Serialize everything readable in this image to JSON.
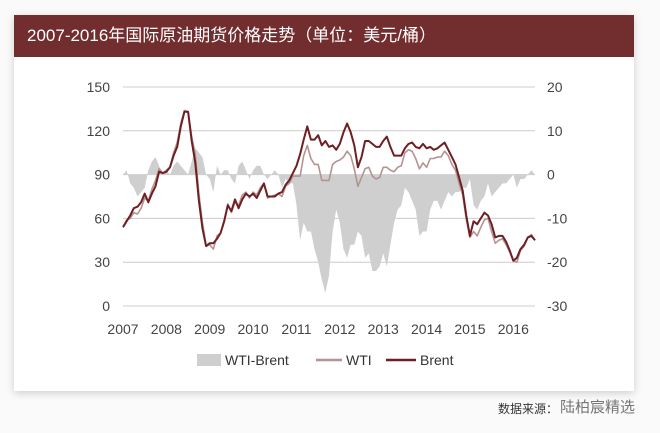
{
  "header": {
    "title": "2007-2016年国际原油期货价格走势（单位：美元/桶）"
  },
  "footer": {
    "source": "数据来源：",
    "watermark": "陆柏宸精选"
  },
  "colors": {
    "header": "#722d2f",
    "brent": "#6e1f24",
    "wti": "#b49492",
    "spread": "#cfcfcf",
    "grid": "#cccccc"
  },
  "chart_data": {
    "type": "line+area",
    "title": "2007-2016年国际原油期货价格走势（单位：美元/桶）",
    "x_ticks": [
      "2007",
      "2008",
      "2009",
      "2010",
      "2011",
      "2012",
      "2013",
      "2014",
      "2015",
      "2016"
    ],
    "left_axis": {
      "ticks": [
        "0",
        "30",
        "60",
        "90",
        "120",
        "150"
      ],
      "ylim": [
        0,
        150
      ]
    },
    "right_axis": {
      "ticks": [
        "-30",
        "-20",
        "-10",
        "0",
        "10",
        "20"
      ],
      "ylim": [
        -30,
        20
      ]
    },
    "grid": true,
    "legend": {
      "position": "bottom",
      "items": [
        "WTI-Brent",
        "WTI",
        "Brent"
      ]
    },
    "x": [
      "2007-01",
      "2007-02",
      "2007-03",
      "2007-04",
      "2007-05",
      "2007-06",
      "2007-07",
      "2007-08",
      "2007-09",
      "2007-10",
      "2007-11",
      "2007-12",
      "2008-01",
      "2008-02",
      "2008-03",
      "2008-04",
      "2008-05",
      "2008-06",
      "2008-07",
      "2008-08",
      "2008-09",
      "2008-10",
      "2008-11",
      "2008-12",
      "2009-01",
      "2009-02",
      "2009-03",
      "2009-04",
      "2009-05",
      "2009-06",
      "2009-07",
      "2009-08",
      "2009-09",
      "2009-10",
      "2009-11",
      "2009-12",
      "2010-01",
      "2010-02",
      "2010-03",
      "2010-04",
      "2010-05",
      "2010-06",
      "2010-07",
      "2010-08",
      "2010-09",
      "2010-10",
      "2010-11",
      "2010-12",
      "2011-01",
      "2011-02",
      "2011-03",
      "2011-04",
      "2011-05",
      "2011-06",
      "2011-07",
      "2011-08",
      "2011-09",
      "2011-10",
      "2011-11",
      "2011-12",
      "2012-01",
      "2012-02",
      "2012-03",
      "2012-04",
      "2012-05",
      "2012-06",
      "2012-07",
      "2012-08",
      "2012-09",
      "2012-10",
      "2012-11",
      "2012-12",
      "2013-01",
      "2013-02",
      "2013-03",
      "2013-04",
      "2013-05",
      "2013-06",
      "2013-07",
      "2013-08",
      "2013-09",
      "2013-10",
      "2013-11",
      "2013-12",
      "2014-01",
      "2014-02",
      "2014-03",
      "2014-04",
      "2014-05",
      "2014-06",
      "2014-07",
      "2014-08",
      "2014-09",
      "2014-10",
      "2014-11",
      "2014-12",
      "2015-01",
      "2015-02",
      "2015-03",
      "2015-04",
      "2015-05",
      "2015-06",
      "2015-07",
      "2015-08",
      "2015-09",
      "2015-10",
      "2015-11",
      "2015-12",
      "2016-01",
      "2016-02",
      "2016-03",
      "2016-04",
      "2016-05",
      "2016-06",
      "2016-07"
    ],
    "series": [
      {
        "name": "WTI-Brent",
        "axis": "right",
        "type": "area",
        "values": [
          0,
          1,
          -2,
          -3,
          -5,
          -4,
          -3,
          1,
          3,
          4,
          2,
          0,
          1,
          0,
          2,
          3,
          2,
          1,
          0,
          3,
          6,
          5,
          4,
          0,
          -1,
          -4,
          2,
          0,
          1,
          1,
          -1,
          -2,
          2,
          3,
          1,
          -1,
          1,
          2,
          2,
          0,
          -1,
          0,
          1,
          0,
          -3,
          -1,
          -2,
          -2,
          -7,
          -15,
          -11,
          -13,
          -13,
          -17,
          -20,
          -24,
          -27,
          -23,
          -13,
          -8,
          -11,
          -17,
          -19,
          -16,
          -16,
          -13,
          -14,
          -19,
          -18,
          -22,
          -22,
          -21,
          -18,
          -21,
          -16,
          -11,
          -8,
          -7,
          -3,
          -4,
          -6,
          -8,
          -14,
          -13,
          -13,
          -8,
          -6,
          -6,
          -8,
          -6,
          -4,
          -5,
          -4,
          -4,
          -3,
          -3,
          -1,
          -7,
          -8,
          -6,
          -5,
          -2,
          -5,
          -4,
          -3,
          -2,
          -2,
          -1,
          0,
          -3,
          -1,
          -1,
          0,
          1,
          0
        ]
      },
      {
        "name": "WTI",
        "axis": "left",
        "type": "line",
        "values": [
          54,
          59,
          60,
          64,
          63,
          67,
          74,
          72,
          80,
          86,
          94,
          91,
          93,
          95,
          105,
          112,
          125,
          134,
          133,
          116,
          104,
          77,
          57,
          41,
          42,
          39,
          48,
          50,
          59,
          70,
          64,
          71,
          69,
          76,
          78,
          74,
          78,
          76,
          81,
          84,
          74,
          75,
          76,
          77,
          75,
          82,
          84,
          89,
          89,
          89,
          103,
          110,
          101,
          97,
          97,
          86,
          86,
          86,
          97,
          99,
          100,
          102,
          106,
          103,
          94,
          82,
          88,
          94,
          95,
          89,
          87,
          88,
          95,
          95,
          93,
          92,
          95,
          96,
          105,
          107,
          106,
          101,
          94,
          98,
          95,
          101,
          101,
          102,
          102,
          106,
          103,
          97,
          93,
          84,
          76,
          59,
          47,
          51,
          48,
          54,
          59,
          60,
          51,
          43,
          45,
          46,
          42,
          37,
          31,
          30,
          38,
          41,
          47,
          49,
          45
        ]
      },
      {
        "name": "Brent",
        "axis": "left",
        "type": "line",
        "values": [
          54,
          58,
          62,
          67,
          68,
          71,
          77,
          71,
          77,
          82,
          92,
          91,
          92,
          95,
          103,
          109,
          123,
          133,
          133,
          113,
          98,
          72,
          53,
          41,
          43,
          43,
          46,
          50,
          58,
          69,
          65,
          73,
          67,
          73,
          77,
          75,
          77,
          74,
          79,
          84,
          75,
          75,
          75,
          77,
          78,
          83,
          86,
          91,
          96,
          104,
          114,
          123,
          114,
          114,
          117,
          110,
          113,
          109,
          110,
          107,
          111,
          119,
          125,
          119,
          110,
          95,
          102,
          113,
          113,
          111,
          109,
          109,
          113,
          116,
          109,
          103,
          103,
          103,
          108,
          111,
          112,
          109,
          108,
          111,
          108,
          109,
          107,
          108,
          110,
          112,
          107,
          102,
          97,
          88,
          79,
          62,
          48,
          58,
          56,
          60,
          64,
          62,
          56,
          47,
          48,
          48,
          44,
          38,
          31,
          33,
          39,
          42,
          47,
          48,
          45
        ]
      }
    ]
  }
}
